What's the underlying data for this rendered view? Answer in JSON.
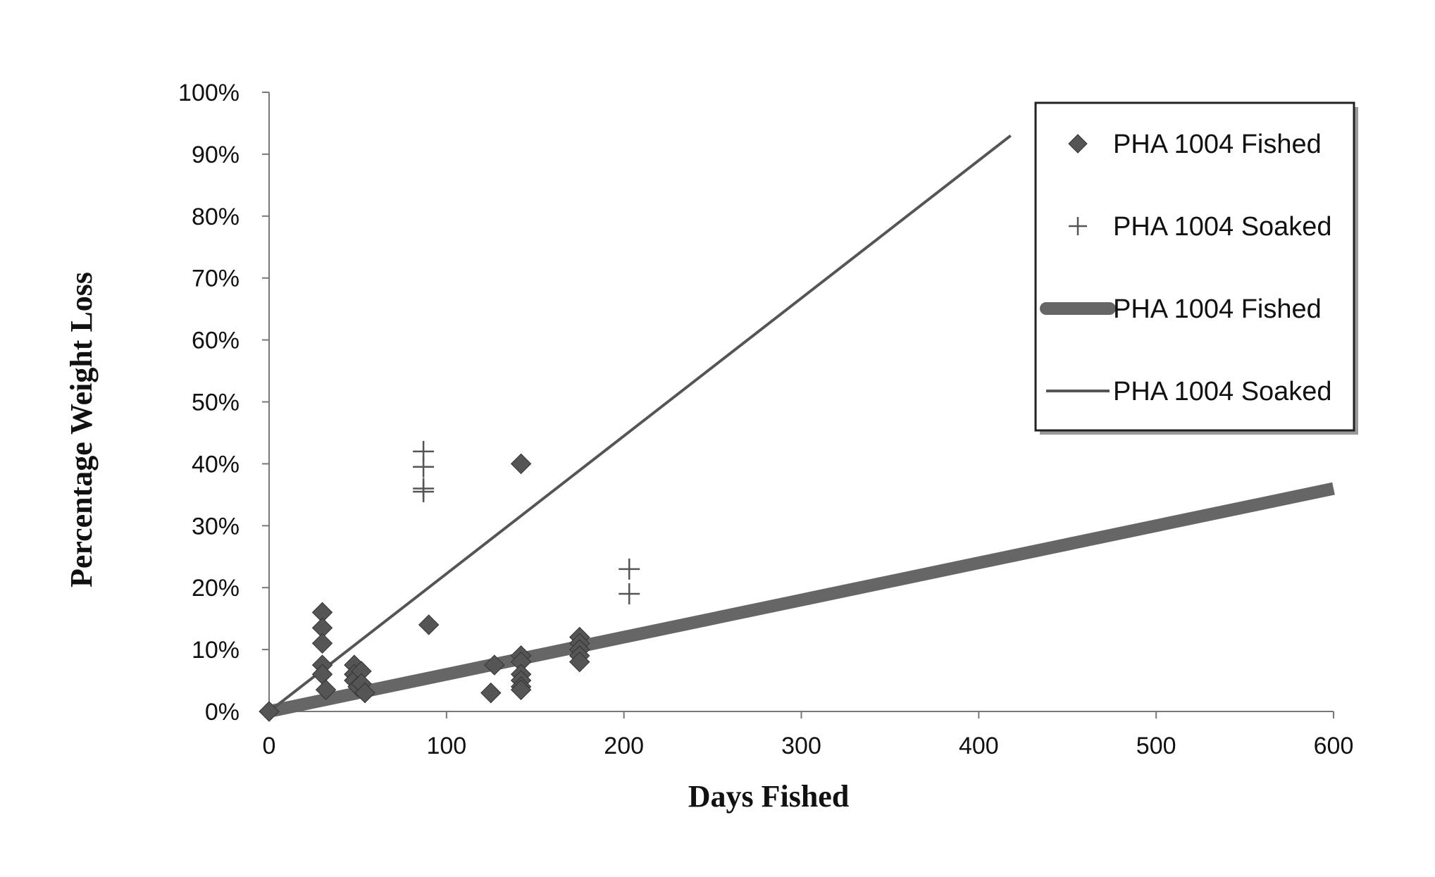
{
  "chart_data": {
    "type": "scatter",
    "title": "",
    "xlabel": "Days Fished",
    "ylabel": "Percentage Weight Loss",
    "xlim": [
      0,
      600
    ],
    "ylim": [
      0,
      1.0
    ],
    "x_ticks": [
      0,
      100,
      200,
      300,
      400,
      500,
      600
    ],
    "y_ticks": [
      0,
      0.1,
      0.2,
      0.3,
      0.4,
      0.5,
      0.6,
      0.7,
      0.8,
      0.9,
      1.0
    ],
    "x_tick_labels": [
      "0",
      "100",
      "200",
      "300",
      "400",
      "500",
      "600"
    ],
    "y_tick_labels": [
      "0%",
      "10%",
      "20%",
      "30%",
      "40%",
      "50%",
      "60%",
      "70%",
      "80%",
      "90%",
      "100%"
    ],
    "grid": false,
    "legend_position": "top-right",
    "series": [
      {
        "name": "PHA 1004 Fished",
        "kind": "scatter",
        "marker": "diamond",
        "color": "#555555",
        "points": [
          [
            0,
            0.0
          ],
          [
            30,
            0.16
          ],
          [
            30,
            0.135
          ],
          [
            30,
            0.11
          ],
          [
            30,
            0.075
          ],
          [
            30,
            0.06
          ],
          [
            32,
            0.035
          ],
          [
            48,
            0.075
          ],
          [
            48,
            0.06
          ],
          [
            48,
            0.05
          ],
          [
            50,
            0.04
          ],
          [
            52,
            0.065
          ],
          [
            52,
            0.045
          ],
          [
            54,
            0.03
          ],
          [
            90,
            0.14
          ],
          [
            125,
            0.03
          ],
          [
            127,
            0.075
          ],
          [
            142,
            0.4
          ],
          [
            142,
            0.09
          ],
          [
            142,
            0.08
          ],
          [
            142,
            0.06
          ],
          [
            142,
            0.05
          ],
          [
            142,
            0.04
          ],
          [
            142,
            0.035
          ],
          [
            175,
            0.12
          ],
          [
            175,
            0.11
          ],
          [
            175,
            0.1
          ],
          [
            175,
            0.09
          ],
          [
            175,
            0.08
          ]
        ]
      },
      {
        "name": "PHA 1004 Soaked",
        "kind": "scatter",
        "marker": "plus",
        "color": "#555555",
        "points": [
          [
            87,
            0.42
          ],
          [
            87,
            0.395
          ],
          [
            87,
            0.36
          ],
          [
            87,
            0.355
          ],
          [
            203,
            0.23
          ],
          [
            203,
            0.19
          ]
        ]
      },
      {
        "name": "PHA 1004 Fished",
        "kind": "trendline",
        "line_style": "thick",
        "color": "#666666",
        "points": [
          [
            0,
            0.0
          ],
          [
            600,
            0.36
          ]
        ]
      },
      {
        "name": "PHA 1004 Soaked",
        "kind": "trendline",
        "line_style": "thin",
        "color": "#555555",
        "points": [
          [
            0,
            0.0
          ],
          [
            418,
            0.93
          ]
        ]
      }
    ]
  }
}
